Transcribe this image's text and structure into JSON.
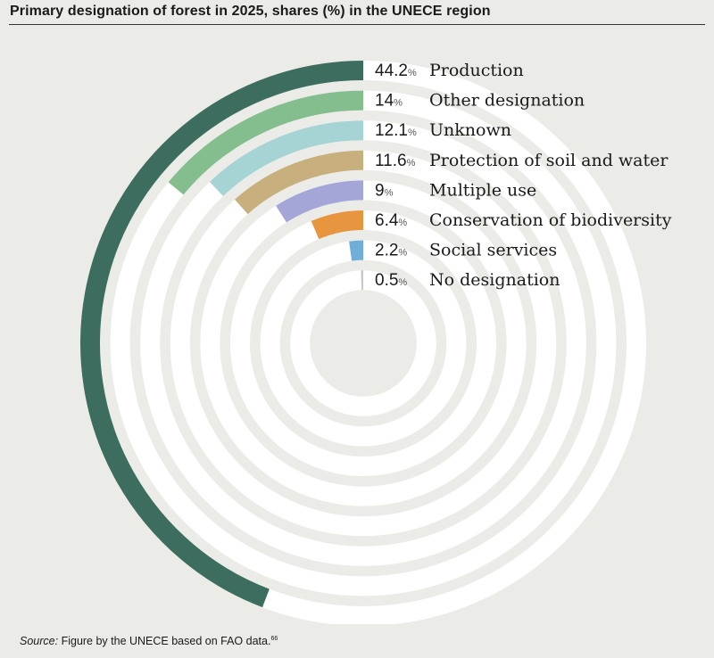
{
  "header": {
    "title": "Primary designation of forest in 2025, shares (%) in the UNECE region"
  },
  "chart_data": {
    "type": "radial-bar",
    "title": "Primary designation of forest in 2025, shares (%) in the UNECE region",
    "unit": "%",
    "categories": [
      "Production",
      "Other designation",
      "Unknown",
      "Protection of soil and water",
      "Multiple use",
      "Conservation of biodiversity",
      "Social services",
      "No designation"
    ],
    "values": [
      44.2,
      14,
      12.1,
      11.6,
      9,
      6.4,
      2.2,
      0.5
    ],
    "value_labels": [
      "44.2",
      "14",
      "12.1",
      "11.6",
      "9",
      "6.4",
      "2.2",
      "0.5"
    ],
    "colors": [
      "#3d6d5e",
      "#84bd8e",
      "#a6d3d3",
      "#c8b07e",
      "#a3a6d6",
      "#e8953f",
      "#6faed6",
      "#c8c8c8"
    ],
    "track_color": "#ffffff",
    "max": 100
  },
  "footer": {
    "source_label": "Source:",
    "source_text": "Figure by the UNECE based on FAO data.",
    "source_ref": "66"
  }
}
